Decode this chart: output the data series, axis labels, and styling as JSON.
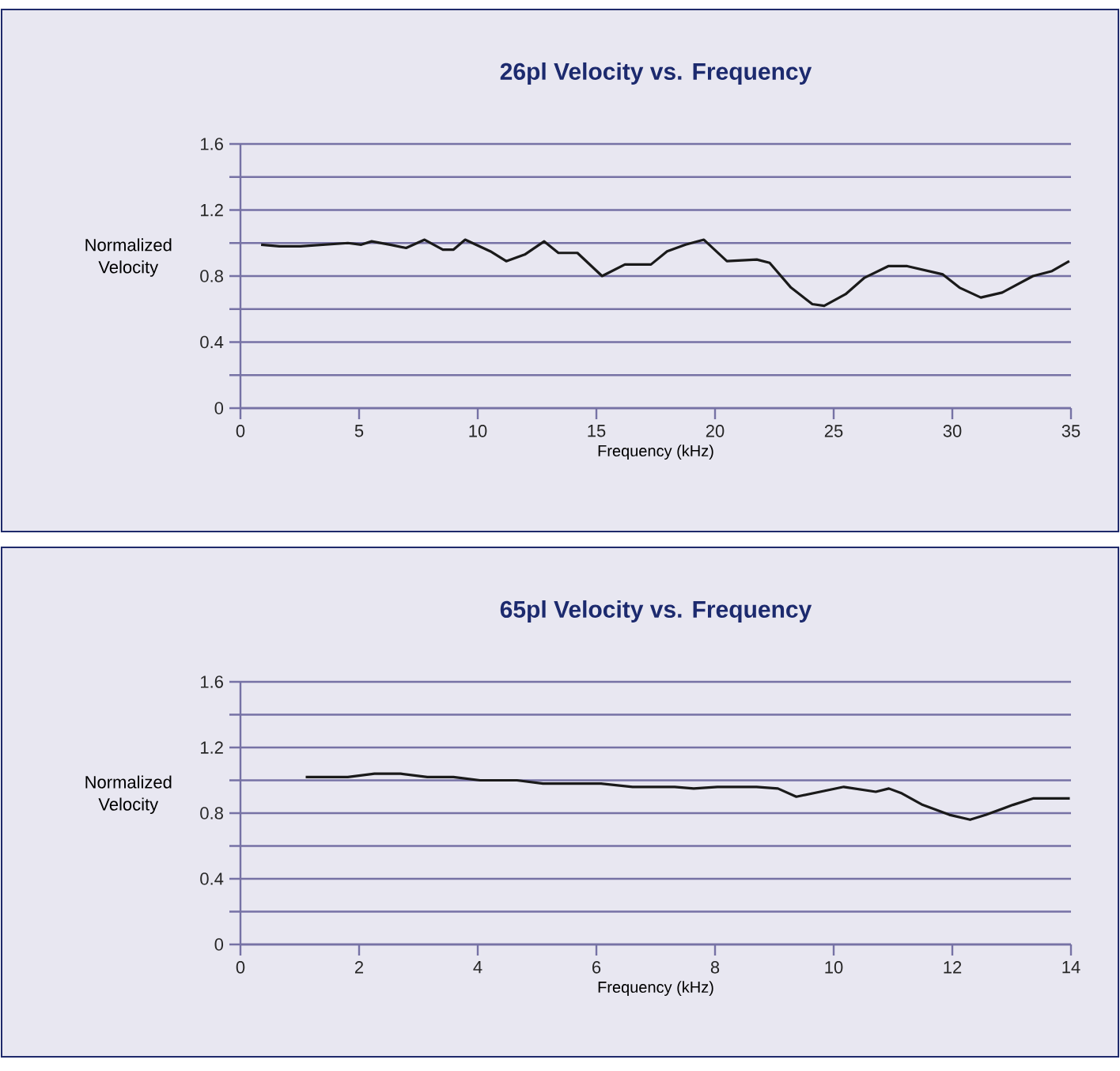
{
  "chart_data": [
    {
      "type": "line",
      "title": "26pl Velocity vs. Frequency",
      "xlabel": "Frequency (kHz)",
      "ylabel": "Normalized Velocity",
      "grid": "y",
      "xlim": [
        0,
        35
      ],
      "ylim": [
        0,
        1.6
      ],
      "xticks": [
        0,
        5,
        10,
        15,
        20,
        25,
        30,
        35
      ],
      "yticks": [
        {
          "value": 0,
          "label": "0"
        },
        {
          "value": 0.2,
          "label": null
        },
        {
          "value": 0.4,
          "label": "0.4"
        },
        {
          "value": 0.6,
          "label": null
        },
        {
          "value": 0.8,
          "label": "0.8"
        },
        {
          "value": 1.0,
          "label": null
        },
        {
          "value": 1.2,
          "label": "1.2"
        },
        {
          "value": 1.4,
          "label": null
        },
        {
          "value": 1.6,
          "label": "1.6"
        }
      ],
      "series": [
        {
          "color": "#1a1a1a",
          "x": [
            0.87,
            1.64,
            2.53,
            4.53,
            5.09,
            5.53,
            6.31,
            6.98,
            7.76,
            8.53,
            8.98,
            9.47,
            10.53,
            11.2,
            11.98,
            12.8,
            13.4,
            14.2,
            15.24,
            16.2,
            17.3,
            17.98,
            18.76,
            19.53,
            20.5,
            21.76,
            22.3,
            23.2,
            24.1,
            24.6,
            25.5,
            26.3,
            27.3,
            28.1,
            29.6,
            30.3,
            31.2,
            32.1,
            33.4,
            34.2,
            34.93
          ],
          "values": [
            0.99,
            0.98,
            0.98,
            1.0,
            0.99,
            1.01,
            0.99,
            0.97,
            1.02,
            0.96,
            0.96,
            1.02,
            0.95,
            0.89,
            0.93,
            1.01,
            0.94,
            0.94,
            0.8,
            0.87,
            0.87,
            0.95,
            0.99,
            1.02,
            0.89,
            0.9,
            0.88,
            0.73,
            0.63,
            0.62,
            0.69,
            0.79,
            0.86,
            0.86,
            0.81,
            0.73,
            0.67,
            0.7,
            0.8,
            0.83,
            0.89
          ]
        }
      ]
    },
    {
      "type": "line",
      "title": "65pl Velocity vs. Frequency",
      "xlabel": "Frequency (kHz)",
      "ylabel": "Normalized Velocity",
      "grid": "y",
      "xlim": [
        0,
        14
      ],
      "ylim": [
        0,
        1.6
      ],
      "xticks": [
        0,
        2,
        4,
        6,
        8,
        10,
        12,
        14
      ],
      "yticks": [
        {
          "value": 0,
          "label": "0"
        },
        {
          "value": 0.2,
          "label": null
        },
        {
          "value": 0.4,
          "label": "0.4"
        },
        {
          "value": 0.6,
          "label": null
        },
        {
          "value": 0.8,
          "label": "0.8"
        },
        {
          "value": 1.0,
          "label": null
        },
        {
          "value": 1.2,
          "label": "1.2"
        },
        {
          "value": 1.4,
          "label": null
        },
        {
          "value": 1.6,
          "label": "1.6"
        }
      ],
      "series": [
        {
          "color": "#1a1a1a",
          "x": [
            1.1,
            1.81,
            2.26,
            2.7,
            3.15,
            3.59,
            4.04,
            4.66,
            5.1,
            6.08,
            6.61,
            7.32,
            7.64,
            8.04,
            8.7,
            9.06,
            9.37,
            10.17,
            10.71,
            10.93,
            11.15,
            11.5,
            11.95,
            12.3,
            12.57,
            13.02,
            13.37,
            13.68,
            13.98
          ],
          "values": [
            1.02,
            1.02,
            1.04,
            1.04,
            1.02,
            1.02,
            1.0,
            1.0,
            0.98,
            0.98,
            0.96,
            0.96,
            0.95,
            0.96,
            0.96,
            0.95,
            0.9,
            0.96,
            0.93,
            0.95,
            0.92,
            0.85,
            0.79,
            0.76,
            0.79,
            0.85,
            0.89,
            0.89,
            0.89
          ]
        }
      ]
    }
  ]
}
